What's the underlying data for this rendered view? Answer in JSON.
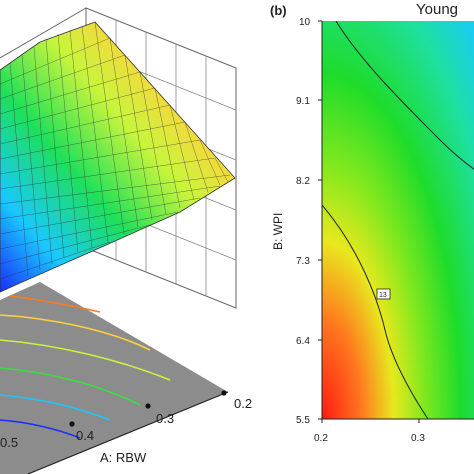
{
  "chart_data": [
    {
      "type": "surface",
      "panel": "a",
      "xlabel": "A: RBW",
      "x_ticks": [
        0.5,
        0.4,
        0.3,
        0.2
      ],
      "colormap": [
        "#1a2cff",
        "#19c8ff",
        "#1ee05a",
        "#c8f53c",
        "#ffd23c",
        "#ff7a3c",
        "#ff2a1e"
      ]
    },
    {
      "type": "contour",
      "panel_label": "(b)",
      "title": "Young",
      "xlabel": "",
      "ylabel": "B: WPI",
      "x_ticks": [
        0.2,
        0.3
      ],
      "y_ticks": [
        10,
        9.1,
        8.2,
        7.3,
        6.4,
        5.5
      ],
      "xlim": [
        0.2,
        0.5
      ],
      "ylim": [
        5.5,
        10
      ],
      "contour_labels": [
        "13"
      ],
      "colormap": [
        "#1a2cff",
        "#19c8ff",
        "#1ee05a",
        "#c8f53c",
        "#ffd23c",
        "#ff7a3c",
        "#ff2a1e"
      ]
    }
  ]
}
